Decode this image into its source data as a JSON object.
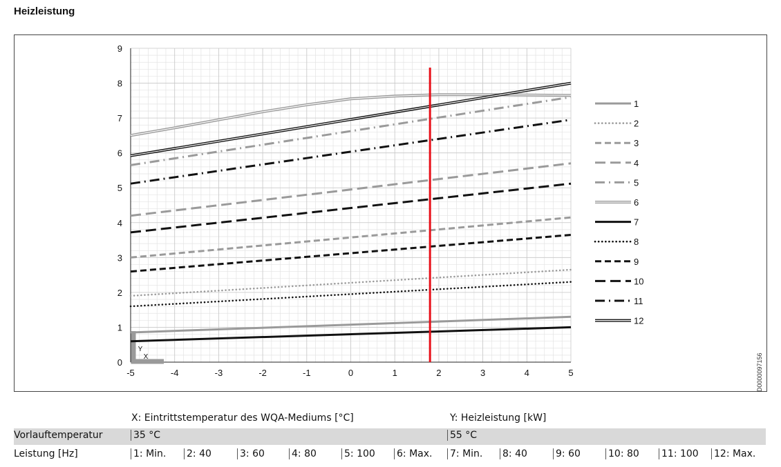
{
  "title": "Heizleistung",
  "doc_id": "D0000097156",
  "captions": {
    "x": "X: Eintrittstemperatur des WQA-Mediums [°C]",
    "y": "Y: Heizleistung [kW]"
  },
  "table": {
    "row1_label": "Vorlauftemperatur",
    "row1_values": [
      "35 °C",
      "55 °C"
    ],
    "row2_label": "Leistung [Hz]",
    "row2_values": [
      "1: Min.",
      "2: 40",
      "3: 60",
      "4: 80",
      "5: 100",
      "6: Max.",
      "7: Min.",
      "8: 40",
      "9: 60",
      "10: 80",
      "11: 100",
      "12: Max."
    ]
  },
  "chart_data": {
    "type": "line",
    "title": "Heizleistung",
    "xlabel": "X",
    "ylabel": "Y",
    "xlim": [
      -5,
      5
    ],
    "ylim": [
      0,
      9
    ],
    "xticks": [
      -5,
      -4,
      -3,
      -2,
      -1,
      0,
      1,
      2,
      3,
      4,
      5
    ],
    "yticks": [
      0,
      1,
      2,
      3,
      4,
      5,
      6,
      7,
      8,
      9
    ],
    "grid": true,
    "legend_position": "right",
    "marker_line_x": 1.8,
    "marker_line_color": "#e8101a",
    "x": [
      -5,
      5
    ],
    "series": [
      {
        "name": "1",
        "values": [
          0.85,
          1.3
        ],
        "color": "#9a9a9a",
        "style": "solid"
      },
      {
        "name": "2",
        "values": [
          1.9,
          2.65
        ],
        "color": "#9a9a9a",
        "style": "dotted"
      },
      {
        "name": "3",
        "values": [
          3.0,
          4.15
        ],
        "color": "#9a9a9a",
        "style": "dashed"
      },
      {
        "name": "4",
        "values": [
          4.2,
          5.7
        ],
        "color": "#9a9a9a",
        "style": "longdash"
      },
      {
        "name": "5",
        "values": [
          5.65,
          7.6
        ],
        "color": "#9a9a9a",
        "style": "dashdot"
      },
      {
        "name": "6",
        "x": [
          -5,
          -4,
          -3,
          -2,
          -1,
          0,
          1,
          2,
          3,
          4,
          5
        ],
        "values": [
          6.5,
          6.72,
          6.95,
          7.18,
          7.38,
          7.55,
          7.63,
          7.67,
          7.67,
          7.66,
          7.65
        ],
        "color": "#9a9a9a",
        "style": "double"
      },
      {
        "name": "7",
        "values": [
          0.6,
          1.0
        ],
        "color": "#111111",
        "style": "solid"
      },
      {
        "name": "8",
        "values": [
          1.6,
          2.3
        ],
        "color": "#111111",
        "style": "dotted"
      },
      {
        "name": "9",
        "values": [
          2.6,
          3.65
        ],
        "color": "#111111",
        "style": "dashed"
      },
      {
        "name": "10",
        "values": [
          3.72,
          5.12
        ],
        "color": "#111111",
        "style": "longdash"
      },
      {
        "name": "11",
        "values": [
          5.12,
          6.95
        ],
        "color": "#111111",
        "style": "dashdot"
      },
      {
        "name": "12",
        "values": [
          5.92,
          8.0
        ],
        "color": "#111111",
        "style": "double"
      }
    ]
  }
}
